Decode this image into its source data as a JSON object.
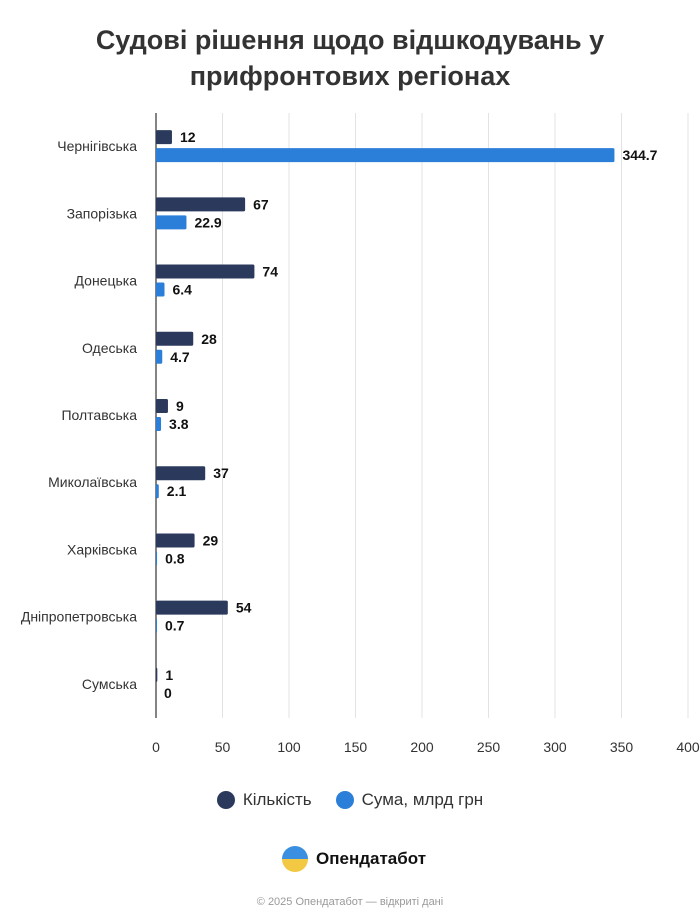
{
  "chart_data": {
    "type": "bar",
    "orientation": "horizontal",
    "title": "Судові рішення щодо відшкодувань у прифронтових регіонах",
    "categories": [
      "Чернігівська",
      "Запорізька",
      "Донецька",
      "Одеська",
      "Полтавська",
      "Миколаївська",
      "Харківська",
      "Дніпропетровська",
      "Сумська"
    ],
    "series": [
      {
        "name": "Кількість",
        "color": "#2b3a5c",
        "values": [
          12,
          67,
          74,
          28,
          9,
          37,
          29,
          54,
          1
        ],
        "labels": [
          "12",
          "67",
          "74",
          "28",
          "9",
          "37",
          "29",
          "54",
          "1"
        ]
      },
      {
        "name": "Сума, млрд грн",
        "color": "#2b7fd9",
        "values": [
          344.7,
          22.9,
          6.4,
          4.7,
          3.8,
          2.1,
          0.8,
          0.7,
          0
        ],
        "labels": [
          "344.7",
          "22.9",
          "6.4",
          "4.7",
          "3.8",
          "2.1",
          "0.8",
          "0.7",
          "0"
        ]
      }
    ],
    "xlim": [
      0,
      400
    ],
    "xticks": [
      "0",
      "50",
      "100",
      "150",
      "200",
      "250",
      "300",
      "350",
      "400"
    ],
    "grid": true,
    "legend": "bottom"
  },
  "brand": {
    "name": "Опендатабот",
    "footer": "© 2025 Опендатабот — відкриті дані"
  }
}
